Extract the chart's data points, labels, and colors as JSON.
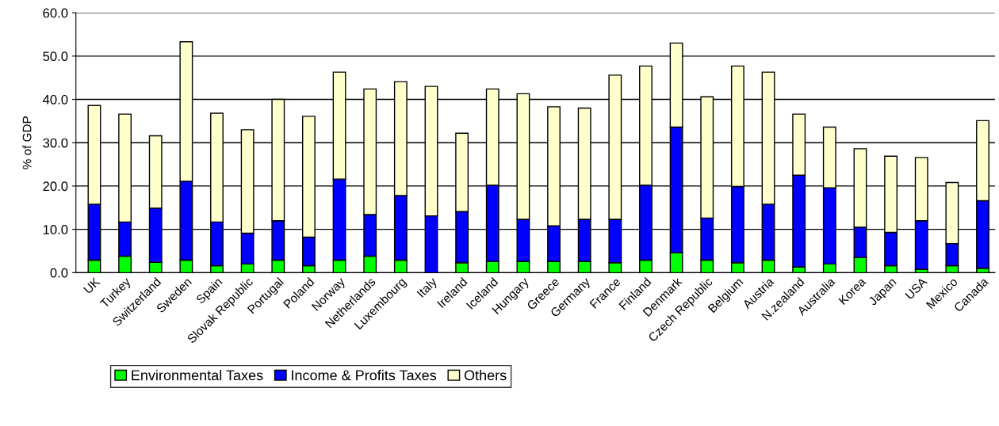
{
  "chart_data": {
    "type": "bar",
    "stacked": true,
    "ylabel": "% of GDP",
    "categories": [
      "UK",
      "Turkey",
      "Switzerland",
      "Sweden",
      "Spain",
      "Slovak Republic",
      "Portugal",
      "Poland",
      "Norway",
      "Netherlands",
      "Luxembourg",
      "Italy",
      "Ireland",
      "Iceland",
      "Hungary",
      "Greece",
      "Germany",
      "France",
      "Finland",
      "Denmark",
      "Czech Republic",
      "Belgium",
      "Austria",
      "N.zealand",
      "Australia",
      "Korea",
      "Japan",
      "USA",
      "Mexico",
      "Canada"
    ],
    "series": [
      {
        "name": "Environmental Taxes",
        "color": "#00ff00",
        "values": [
          2.9,
          3.8,
          2.4,
          2.9,
          1.6,
          2.0,
          2.9,
          1.6,
          2.9,
          3.8,
          2.9,
          0,
          2.3,
          2.6,
          2.6,
          2.6,
          2.6,
          2.3,
          2.9,
          4.6,
          2.9,
          2.3,
          2.9,
          1.3,
          2.0,
          3.5,
          1.6,
          0.8,
          1.6,
          1.0
        ]
      },
      {
        "name": "Income & Profits Taxes",
        "color": "#0000ff",
        "values": [
          12.9,
          7.9,
          12.5,
          18.2,
          10.1,
          7.1,
          9.1,
          6.6,
          18.7,
          9.6,
          14.9,
          13.1,
          11.8,
          17.6,
          9.7,
          8.2,
          9.7,
          10.0,
          17.3,
          29.0,
          9.7,
          17.6,
          12.9,
          21.2,
          17.6,
          7.0,
          7.7,
          11.2,
          5.1,
          15.6
        ]
      },
      {
        "name": "Others",
        "color": "#ffffcc",
        "values": [
          22.8,
          24.9,
          16.7,
          32.2,
          25.1,
          23.9,
          28.0,
          27.9,
          24.7,
          29.0,
          26.3,
          29.9,
          18.1,
          22.2,
          29.0,
          27.5,
          25.7,
          33.3,
          27.5,
          19.4,
          28.0,
          27.8,
          30.5,
          14.1,
          14.0,
          18.1,
          17.6,
          14.6,
          14.1,
          18.5
        ]
      }
    ],
    "ylim": [
      0,
      60
    ],
    "yticks": [
      {
        "value": 0,
        "label": "0.0"
      },
      {
        "value": 10,
        "label": "10.0"
      },
      {
        "value": 20,
        "label": "20.0"
      },
      {
        "value": 30,
        "label": "30.0"
      },
      {
        "value": 40,
        "label": "40.0"
      },
      {
        "value": 50,
        "label": "50.0"
      },
      {
        "value": 60,
        "label": "60.0"
      }
    ],
    "grid": "y",
    "legend": "bottom left"
  }
}
